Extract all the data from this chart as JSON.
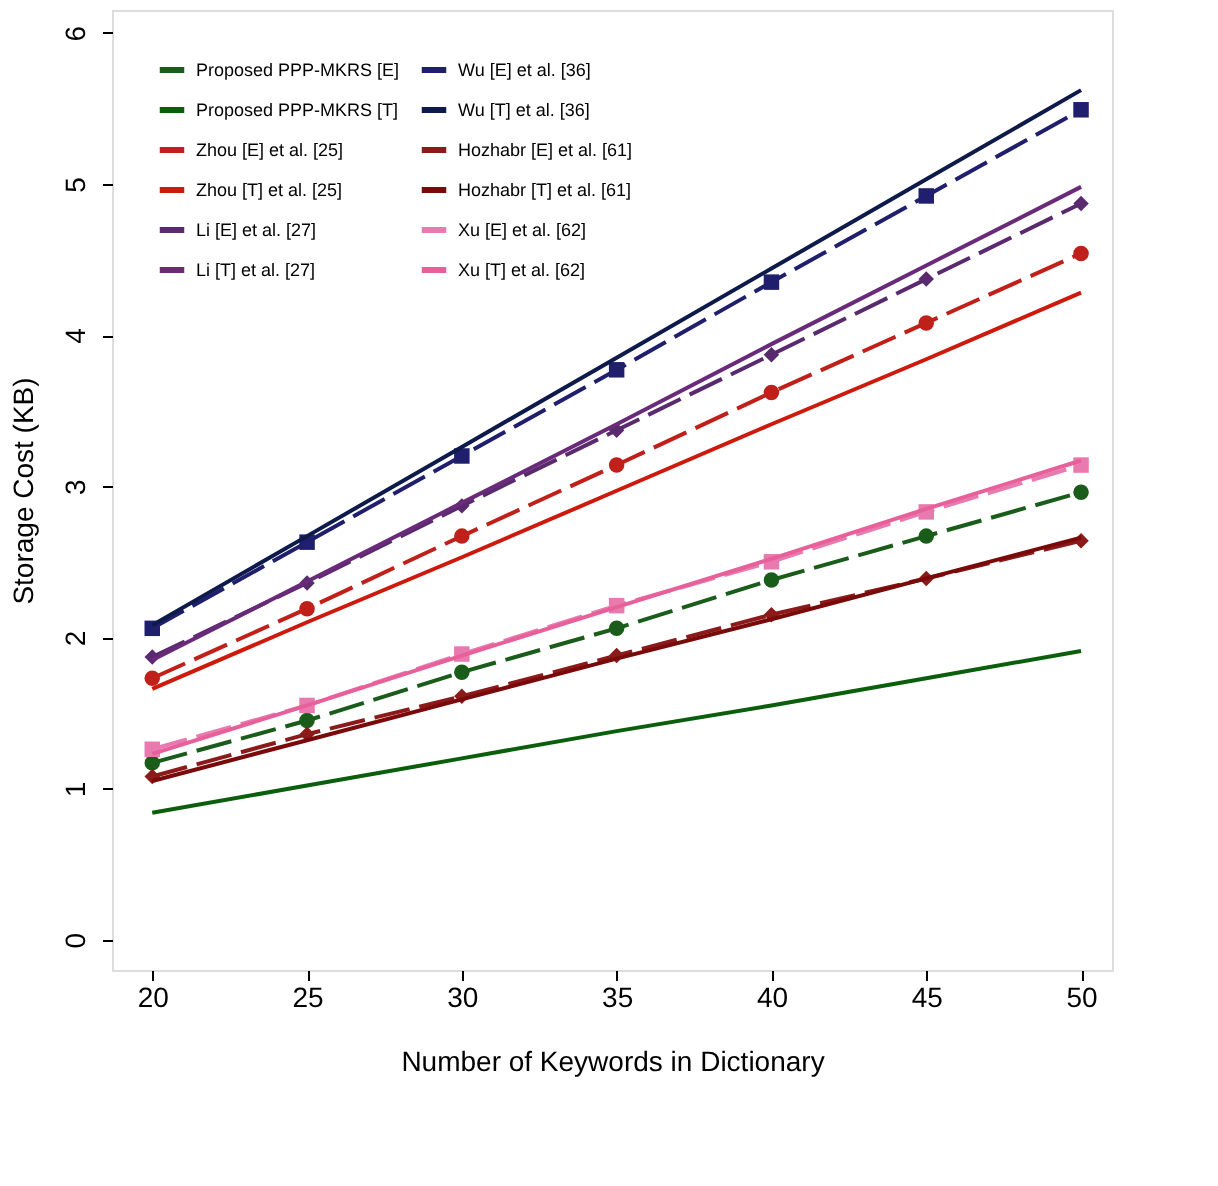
{
  "chart_data": {
    "type": "line",
    "xlabel": "Number of Keywords in Dictionary",
    "ylabel": "Storage Cost (KB)",
    "x": [
      20,
      25,
      30,
      35,
      40,
      45,
      50
    ],
    "xlim": [
      18.7,
      51
    ],
    "xticks": [
      20,
      25,
      30,
      35,
      40,
      45,
      50
    ],
    "ylim": [
      -0.2,
      6.15
    ],
    "yticks": [
      0,
      1,
      2,
      3,
      4,
      5,
      6
    ],
    "grid": false,
    "legend": "top left",
    "series": [
      {
        "name": "Proposed PPP-MKRS [E]",
        "color": "#1a5c1a",
        "marker": "circle",
        "line_style": "dashed",
        "values": [
          1.17,
          1.45,
          1.77,
          2.06,
          2.38,
          2.67,
          2.96
        ]
      },
      {
        "name": "Proposed PPP-MKRS [T]",
        "color": "#0b5e0b",
        "marker": "none",
        "line_style": "solid",
        "values": [
          0.84,
          1.02,
          1.2,
          1.38,
          1.55,
          1.73,
          1.91
        ]
      },
      {
        "name": "Zhou [E] et al. [25]",
        "color": "#c0201a",
        "marker": "circle",
        "line_style": "dashed",
        "values": [
          1.73,
          2.19,
          2.67,
          3.14,
          3.62,
          4.08,
          4.54
        ]
      },
      {
        "name": "Zhou [T] et al. [25]",
        "color": "#cc1a0d",
        "marker": "none",
        "line_style": "solid",
        "values": [
          1.66,
          2.1,
          2.53,
          2.97,
          3.41,
          3.84,
          4.28
        ]
      },
      {
        "name": "Li [E] et al. [27]",
        "color": "#5a2a6e",
        "marker": "diamond",
        "line_style": "dashed",
        "values": [
          1.87,
          2.36,
          2.87,
          3.37,
          3.87,
          4.37,
          4.87
        ]
      },
      {
        "name": "Li [T] et al. [27]",
        "color": "#6a2a7a",
        "marker": "none",
        "line_style": "solid",
        "values": [
          1.85,
          2.37,
          2.89,
          3.41,
          3.94,
          4.46,
          4.98
        ]
      },
      {
        "name": "Wu [E] et al. [36]",
        "color": "#1f1f6e",
        "marker": "square",
        "line_style": "dashed",
        "values": [
          2.06,
          2.63,
          3.2,
          3.77,
          4.35,
          4.92,
          5.49
        ]
      },
      {
        "name": "Wu [T] et al. [36]",
        "color": "#0d1a4a",
        "marker": "none",
        "line_style": "solid",
        "values": [
          2.08,
          2.67,
          3.26,
          3.85,
          4.44,
          5.03,
          5.62
        ]
      },
      {
        "name": "Hozhabr [E] et al. [61]",
        "color": "#8b1a1a",
        "marker": "diamond",
        "line_style": "dashed",
        "values": [
          1.08,
          1.36,
          1.61,
          1.88,
          2.15,
          2.39,
          2.64
        ]
      },
      {
        "name": "Hozhabr [T] et al. [61]",
        "color": "#7a0a0a",
        "marker": "none",
        "line_style": "solid",
        "values": [
          1.05,
          1.32,
          1.59,
          1.86,
          2.12,
          2.39,
          2.66
        ]
      },
      {
        "name": "Xu [E] et al. [62]",
        "color": "#e87ab0",
        "marker": "square",
        "line_style": "dashed",
        "values": [
          1.26,
          1.55,
          1.89,
          2.21,
          2.5,
          2.83,
          3.14
        ]
      },
      {
        "name": "Xu [T] et al. [62]",
        "color": "#e8609a",
        "marker": "none",
        "line_style": "solid",
        "values": [
          1.23,
          1.55,
          1.88,
          2.2,
          2.52,
          2.85,
          3.17
        ]
      }
    ]
  }
}
